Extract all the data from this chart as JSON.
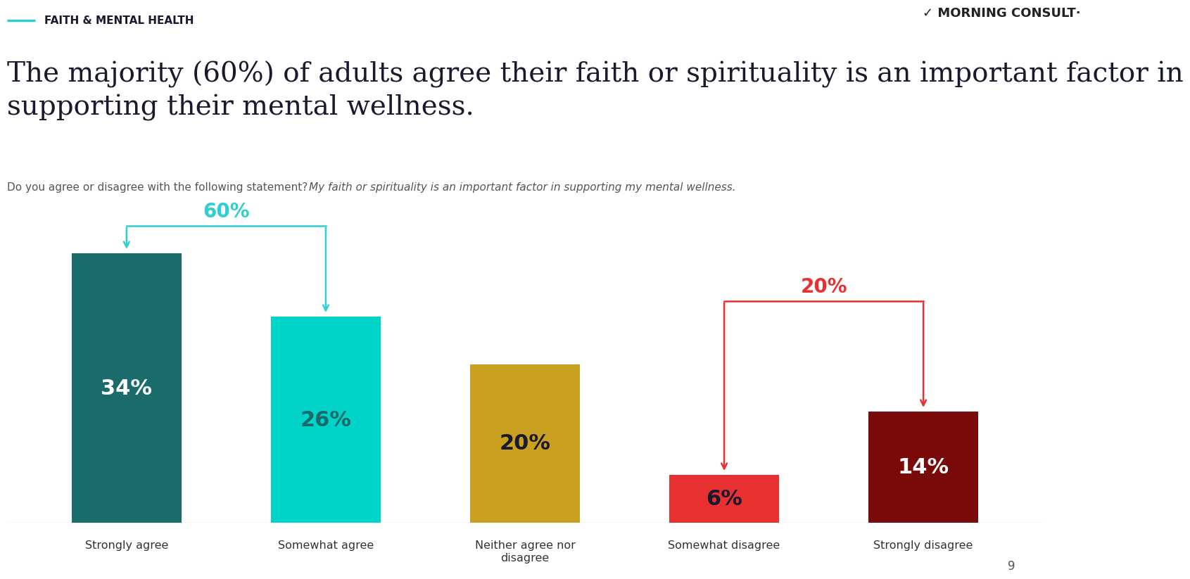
{
  "categories": [
    "Strongly agree",
    "Somewhat agree",
    "Neither agree nor\ndisagree",
    "Somewhat disagree",
    "Strongly disagree"
  ],
  "values": [
    34,
    26,
    20,
    6,
    14
  ],
  "bar_colors": [
    "#1a6b6b",
    "#00d4c8",
    "#c9a020",
    "#e83030",
    "#7a0a0a"
  ],
  "title_tag": "FAITH & MENTAL HEALTH",
  "title": "The majority (60%) of adults agree their faith or spirituality is an important factor in\nsupporting their mental wellness.",
  "subtitle_regular": "Do you agree or disagree with the following statement? ",
  "subtitle_italic": "My faith or spirituality is an important factor in supporting my mental wellness.",
  "background_color": "#ffffff",
  "teal_color": "#2ecfcf",
  "red_color": "#e83030",
  "dark_text": "#1a1a2e",
  "bar_label_colors": [
    "#ffffff",
    "#1a6b6b",
    "#1a1a2e",
    "#1a1a2e",
    "#ffffff"
  ],
  "ylim": [
    0,
    40
  ],
  "page_number": "9"
}
